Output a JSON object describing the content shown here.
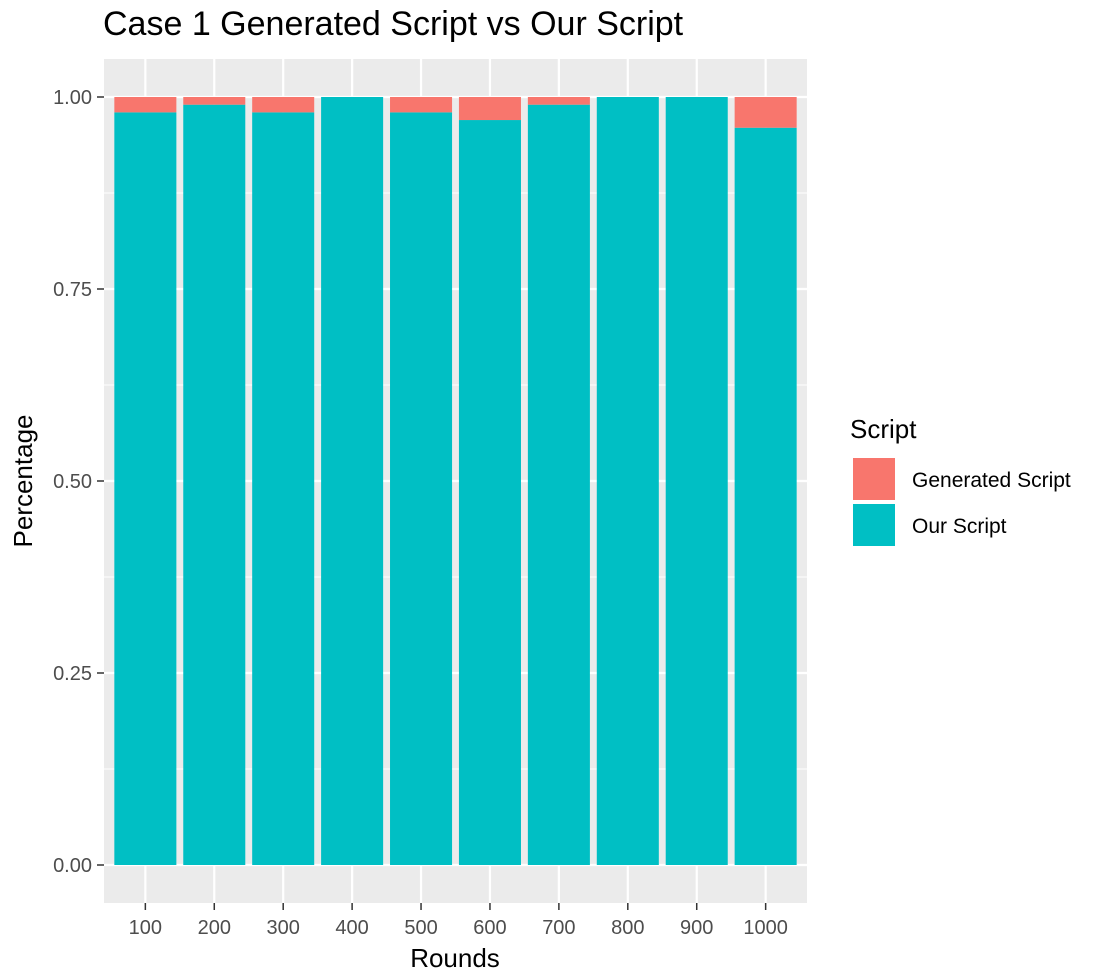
{
  "chart_data": {
    "type": "bar",
    "stacked": true,
    "title": "Case 1 Generated Script vs Our Script",
    "xlabel": "Rounds",
    "ylabel": "Percentage",
    "categories": [
      "100",
      "200",
      "300",
      "400",
      "500",
      "600",
      "700",
      "800",
      "900",
      "1000"
    ],
    "series": [
      {
        "name": "Our Script",
        "color": "#00BFC4",
        "values": [
          0.98,
          0.99,
          0.98,
          1.0,
          0.98,
          0.97,
          0.99,
          1.0,
          1.0,
          0.96
        ]
      },
      {
        "name": "Generated Script",
        "color": "#F8766D",
        "values": [
          0.02,
          0.01,
          0.02,
          0.0,
          0.02,
          0.03,
          0.01,
          0.0,
          0.0,
          0.04
        ]
      }
    ],
    "ylim": [
      0,
      1.0
    ],
    "yticks": [
      0,
      0.25,
      0.5,
      0.75,
      1.0
    ],
    "ytick_labels": [
      "0.00",
      "0.25",
      "0.50",
      "0.75",
      "1.00"
    ],
    "grid": true,
    "legend": {
      "title": "Script",
      "position": "right",
      "entries": [
        {
          "label": "Generated Script",
          "color": "#F8766D"
        },
        {
          "label": "Our Script",
          "color": "#00BFC4"
        }
      ]
    },
    "panel_background": "#EBEBEB",
    "grid_color": "#FFFFFF"
  }
}
